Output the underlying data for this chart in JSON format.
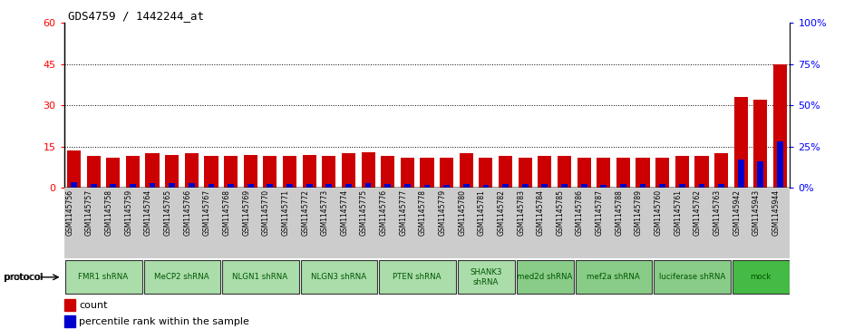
{
  "title": "GDS4759 / 1442244_at",
  "samples": [
    "GSM1145756",
    "GSM1145757",
    "GSM1145758",
    "GSM1145759",
    "GSM1145764",
    "GSM1145765",
    "GSM1145766",
    "GSM1145767",
    "GSM1145768",
    "GSM1145769",
    "GSM1145770",
    "GSM1145771",
    "GSM1145772",
    "GSM1145773",
    "GSM1145774",
    "GSM1145775",
    "GSM1145776",
    "GSM1145777",
    "GSM1145778",
    "GSM1145779",
    "GSM1145780",
    "GSM1145781",
    "GSM1145782",
    "GSM1145783",
    "GSM1145784",
    "GSM1145785",
    "GSM1145786",
    "GSM1145787",
    "GSM1145788",
    "GSM1145789",
    "GSM1145760",
    "GSM1145761",
    "GSM1145762",
    "GSM1145763",
    "GSM1145942",
    "GSM1145943",
    "GSM1145944"
  ],
  "count_values": [
    13.5,
    11.5,
    11.0,
    11.5,
    12.5,
    12.0,
    12.5,
    11.5,
    11.5,
    12.0,
    11.5,
    11.5,
    12.0,
    11.5,
    12.5,
    13.0,
    11.5,
    11.0,
    11.0,
    11.0,
    12.5,
    11.0,
    11.5,
    11.0,
    11.5,
    11.5,
    11.0,
    11.0,
    11.0,
    11.0,
    11.0,
    11.5,
    11.5,
    12.5,
    33.0,
    32.0,
    45.0
  ],
  "percentile_values": [
    3.5,
    2.0,
    2.0,
    2.0,
    2.5,
    2.5,
    2.5,
    2.0,
    2.0,
    2.0,
    2.0,
    2.0,
    2.0,
    2.0,
    2.0,
    2.5,
    2.0,
    2.0,
    1.5,
    1.5,
    2.0,
    1.5,
    2.0,
    2.0,
    2.0,
    2.0,
    2.0,
    1.5,
    2.0,
    2.0,
    2.0,
    2.0,
    2.0,
    2.0,
    17.0,
    16.0,
    28.0
  ],
  "protocols": [
    {
      "label": "FMR1 shRNA",
      "start": 0,
      "end": 4,
      "color": "#aaddaa"
    },
    {
      "label": "MeCP2 shRNA",
      "start": 4,
      "end": 8,
      "color": "#aaddaa"
    },
    {
      "label": "NLGN1 shRNA",
      "start": 8,
      "end": 12,
      "color": "#aaddaa"
    },
    {
      "label": "NLGN3 shRNA",
      "start": 12,
      "end": 16,
      "color": "#aaddaa"
    },
    {
      "label": "PTEN shRNA",
      "start": 16,
      "end": 20,
      "color": "#aaddaa"
    },
    {
      "label": "SHANK3\nshRNA",
      "start": 20,
      "end": 23,
      "color": "#aaddaa"
    },
    {
      "label": "med2d shRNA",
      "start": 23,
      "end": 26,
      "color": "#88cc88"
    },
    {
      "label": "mef2a shRNA",
      "start": 26,
      "end": 30,
      "color": "#88cc88"
    },
    {
      "label": "luciferase shRNA",
      "start": 30,
      "end": 34,
      "color": "#88cc88"
    },
    {
      "label": "mock",
      "start": 34,
      "end": 37,
      "color": "#44bb44"
    }
  ],
  "ylim_left": [
    0,
    60
  ],
  "ylim_right": [
    0,
    100
  ],
  "yticks_left": [
    0,
    15,
    30,
    45,
    60
  ],
  "yticks_right": [
    0,
    25,
    50,
    75,
    100
  ],
  "ytick_labels_left": [
    "0",
    "15",
    "30",
    "45",
    "60"
  ],
  "ytick_labels_right": [
    "0%",
    "25%",
    "50%",
    "75%",
    "100%"
  ],
  "bar_color_red": "#cc0000",
  "bar_color_blue": "#0000cc",
  "bg_color": "#cccccc",
  "plot_bg": "#ffffff",
  "bar_width": 0.7
}
